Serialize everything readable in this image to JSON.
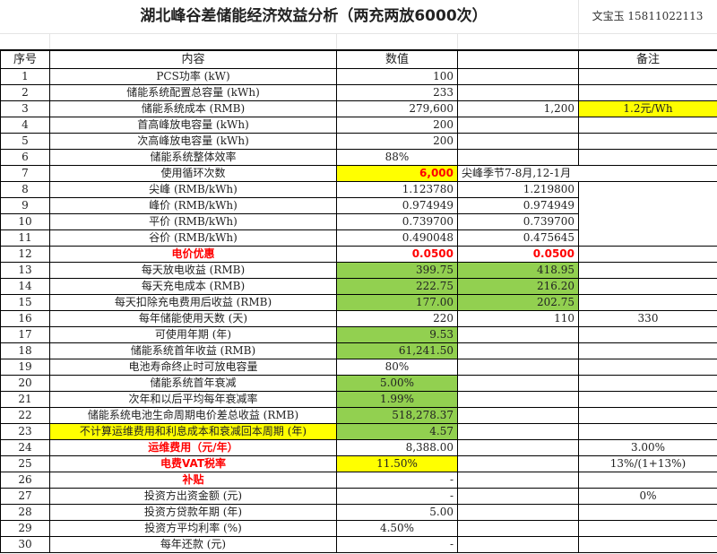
{
  "title": "湖北峰谷差储能经济效益分析（两充两放6000次）",
  "author": "文宝玉  15811022113",
  "header": {
    "no": "序号",
    "content": "内容",
    "value": "数值",
    "extra": "",
    "note": "备注"
  },
  "colors": {
    "yellow": "#ffff00",
    "green": "#92d050",
    "red": "#ff0000"
  },
  "rows": [
    {
      "no": "1",
      "label": "PCS功率  (kW)",
      "val": "100",
      "d": "",
      "e": ""
    },
    {
      "no": "2",
      "label": "储能系统配置总容量 (kWh)",
      "val": "233",
      "d": "",
      "e": ""
    },
    {
      "no": "3",
      "label": "储能系统成本 (RMB)",
      "val": "279,600",
      "d": "1,200",
      "e": "1.2元/Wh"
    },
    {
      "no": "4",
      "label": "首高峰放电容量  (kWh)",
      "val": "200",
      "d": "",
      "e": ""
    },
    {
      "no": "5",
      "label": "次高峰放电容量  (kWh)",
      "val": "200",
      "d": "",
      "e": ""
    },
    {
      "no": "6",
      "label": "储能系统整体效率",
      "val": "88%",
      "d": "",
      "e": ""
    },
    {
      "no": "7",
      "label": "使用循环次数",
      "val": "6,000",
      "d": "尖峰季节7-8月,12-1月",
      "e": ""
    },
    {
      "no": "8",
      "label": "尖峰 (RMB/kWh)",
      "val": "1.123780",
      "d": "1.219800",
      "e": ""
    },
    {
      "no": "9",
      "label": "峰价 (RMB/kWh)",
      "val": "0.974949",
      "d": "0.974949",
      "e": ""
    },
    {
      "no": "10",
      "label": "平价 (RMB/kWh)",
      "val": "0.739700",
      "d": "0.739700",
      "e": ""
    },
    {
      "no": "11",
      "label": "谷价 (RMB/kWh)",
      "val": "0.490048",
      "d": "0.475645",
      "e": ""
    },
    {
      "no": "12",
      "label": "电价优惠",
      "val": "0.0500",
      "d": "0.0500",
      "e": ""
    },
    {
      "no": "13",
      "label": "每天放电收益 (RMB)",
      "val": "399.75",
      "d": "418.95",
      "e": ""
    },
    {
      "no": "14",
      "label": "每天充电成本 (RMB)",
      "val": "222.75",
      "d": "216.20",
      "e": ""
    },
    {
      "no": "15",
      "label": "每天扣除充电费用后收益 (RMB)",
      "val": "177.00",
      "d": "202.75",
      "e": ""
    },
    {
      "no": "16",
      "label": "每年储能使用天数 (天)",
      "val": "220",
      "d": "110",
      "e": "330"
    },
    {
      "no": "17",
      "label": "可使用年期 (年)",
      "val": "9.53",
      "d": "",
      "e": ""
    },
    {
      "no": "18",
      "label": "储能系统首年收益 (RMB)",
      "val": "61,241.50",
      "d": "",
      "e": ""
    },
    {
      "no": "19",
      "label": "电池寿命终止时可放电容量",
      "val": "80%",
      "d": "",
      "e": ""
    },
    {
      "no": "20",
      "label": "储能系统首年衰减",
      "val": "5.00%",
      "d": "",
      "e": ""
    },
    {
      "no": "21",
      "label": "次年和以后平均每年衰减率",
      "val": "1.99%",
      "d": "",
      "e": ""
    },
    {
      "no": "22",
      "label": "储能系统电池生命周期电价差总收益 (RMB)",
      "val": "518,278.37",
      "d": "",
      "e": ""
    },
    {
      "no": "23",
      "label": "不计算运维费用和利息成本和衰减回本周期 (年)",
      "val": "4.57",
      "d": "",
      "e": ""
    },
    {
      "no": "24",
      "label": "运维费用（元/年）",
      "val": "8,388.00",
      "d": "",
      "e": "3.00%"
    },
    {
      "no": "25",
      "label": "电费VAT税率",
      "val": "11.50%",
      "d": "",
      "e": "13%/(1+13%)"
    },
    {
      "no": "26",
      "label": "补贴",
      "val": "-",
      "d": "",
      "e": ""
    },
    {
      "no": "27",
      "label": "投资方出资金额  (元)",
      "val": "-",
      "d": "",
      "e": "0%"
    },
    {
      "no": "28",
      "label": "投资方贷款年期  (年)",
      "val": "5.00",
      "d": "",
      "e": ""
    },
    {
      "no": "29",
      "label": "投资方平均利率  (%)",
      "val": "4.50%",
      "d": "",
      "e": ""
    },
    {
      "no": "30",
      "label": "每年还款  (元)",
      "val": "-",
      "d": "",
      "e": ""
    }
  ]
}
